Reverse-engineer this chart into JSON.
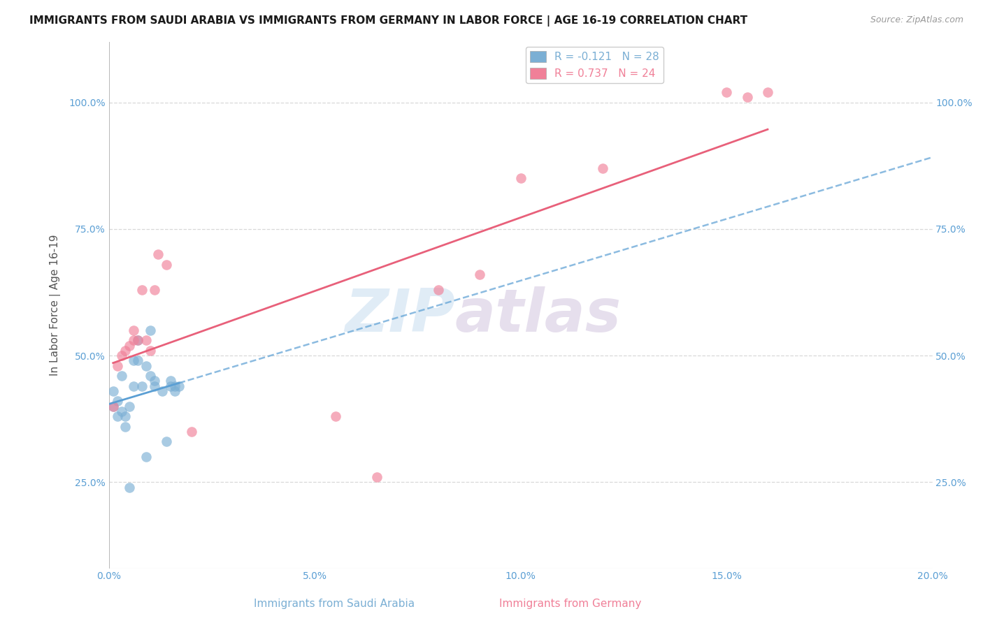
{
  "title": "IMMIGRANTS FROM SAUDI ARABIA VS IMMIGRANTS FROM GERMANY IN LABOR FORCE | AGE 16-19 CORRELATION CHART",
  "source": "Source: ZipAtlas.com",
  "ylabel": "In Labor Force | Age 16-19",
  "xlim": [
    0.0,
    0.2
  ],
  "ylim": [
    0.08,
    1.12
  ],
  "xtick_labels": [
    "0.0%",
    "5.0%",
    "10.0%",
    "15.0%",
    "20.0%"
  ],
  "xtick_vals": [
    0.0,
    0.05,
    0.1,
    0.15,
    0.2
  ],
  "ytick_labels": [
    "25.0%",
    "50.0%",
    "75.0%",
    "100.0%"
  ],
  "ytick_vals": [
    0.25,
    0.5,
    0.75,
    1.0
  ],
  "watermark_zip": "ZIP",
  "watermark_atlas": "atlas",
  "legend_line1": "R = -0.121   N = 28",
  "legend_line2": "R = 0.737   N = 24",
  "legend_color1": "#7bafd4",
  "legend_color2": "#f08098",
  "saudi_color": "#7bafd4",
  "germany_color": "#f08098",
  "saudi_line_color": "#5b9fd4",
  "germany_line_color": "#e8607a",
  "saudi_x": [
    0.001,
    0.001,
    0.002,
    0.002,
    0.003,
    0.003,
    0.004,
    0.004,
    0.005,
    0.005,
    0.006,
    0.006,
    0.007,
    0.007,
    0.008,
    0.009,
    0.009,
    0.01,
    0.01,
    0.011,
    0.011,
    0.013,
    0.014,
    0.015,
    0.015,
    0.016,
    0.016,
    0.017
  ],
  "saudi_y": [
    0.4,
    0.43,
    0.38,
    0.41,
    0.39,
    0.46,
    0.36,
    0.38,
    0.24,
    0.4,
    0.44,
    0.49,
    0.49,
    0.53,
    0.44,
    0.3,
    0.48,
    0.46,
    0.55,
    0.44,
    0.45,
    0.43,
    0.33,
    0.44,
    0.45,
    0.43,
    0.44,
    0.44
  ],
  "germany_x": [
    0.001,
    0.002,
    0.003,
    0.004,
    0.005,
    0.006,
    0.006,
    0.007,
    0.008,
    0.009,
    0.01,
    0.011,
    0.012,
    0.014,
    0.02,
    0.055,
    0.065,
    0.08,
    0.09,
    0.1,
    0.12,
    0.15,
    0.155,
    0.16
  ],
  "germany_y": [
    0.4,
    0.48,
    0.5,
    0.51,
    0.52,
    0.53,
    0.55,
    0.53,
    0.63,
    0.53,
    0.51,
    0.63,
    0.7,
    0.68,
    0.35,
    0.38,
    0.26,
    0.63,
    0.66,
    0.85,
    0.87,
    1.02,
    1.01,
    1.02
  ],
  "background_color": "#ffffff",
  "grid_color": "#d8d8d8",
  "title_fontsize": 11,
  "source_fontsize": 9,
  "tick_color": "#5b9fd4",
  "ylabel_color": "#555555"
}
